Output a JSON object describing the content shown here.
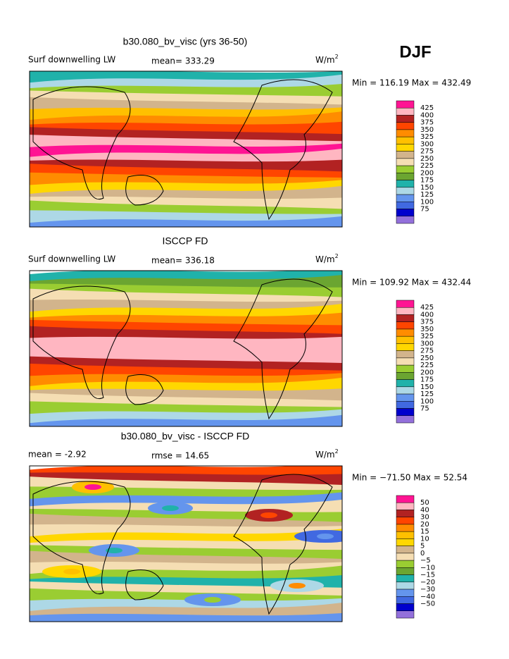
{
  "header": {
    "season": "DJF"
  },
  "panels": [
    {
      "title": "b30.080_bv_visc (yrs 36-50)",
      "left_label": "Surf downwelling LW",
      "mid_label": "mean= 333.29",
      "units": {
        "base": "W/m",
        "sup": "2"
      },
      "min_max": "Min = 116.19 Max = 432.49",
      "colorbar": {
        "levels": [
          "425",
          "400",
          "375",
          "350",
          "325",
          "300",
          "275",
          "250",
          "225",
          "200",
          "175",
          "150",
          "125",
          "100",
          "75"
        ]
      }
    },
    {
      "title": "ISCCP FD",
      "left_label": "Surf downwelling LW",
      "mid_label": "mean= 336.18",
      "units": {
        "base": "W/m",
        "sup": "2"
      },
      "min_max": "Min = 109.92 Max = 432.44",
      "colorbar": {
        "levels": [
          "425",
          "400",
          "375",
          "350",
          "325",
          "300",
          "275",
          "250",
          "225",
          "200",
          "175",
          "150",
          "125",
          "100",
          "75"
        ]
      }
    },
    {
      "title": "b30.080_bv_visc - ISCCP FD",
      "left_label": "mean =   -2.92",
      "mid_label": "rmse =  14.65",
      "units": {
        "base": "W/m",
        "sup": "2"
      },
      "min_max": "Min = −71.50 Max =  52.54",
      "colorbar": {
        "levels": [
          "50",
          "40",
          "30",
          "20",
          "15",
          "10",
          "5",
          "0",
          "−5",
          "−10",
          "−15",
          "−20",
          "−30",
          "−40",
          "−50"
        ]
      }
    }
  ],
  "colors": [
    "#ff1493",
    "#ffb6c1",
    "#b22222",
    "#ff4500",
    "#ff8c00",
    "#ffc000",
    "#ffd700",
    "#d2b48c",
    "#f5deb3",
    "#9acd32",
    "#6ba531",
    "#20b2aa",
    "#add8e6",
    "#6495ed",
    "#4169e1",
    "#0000cd",
    "#9370db"
  ]
}
